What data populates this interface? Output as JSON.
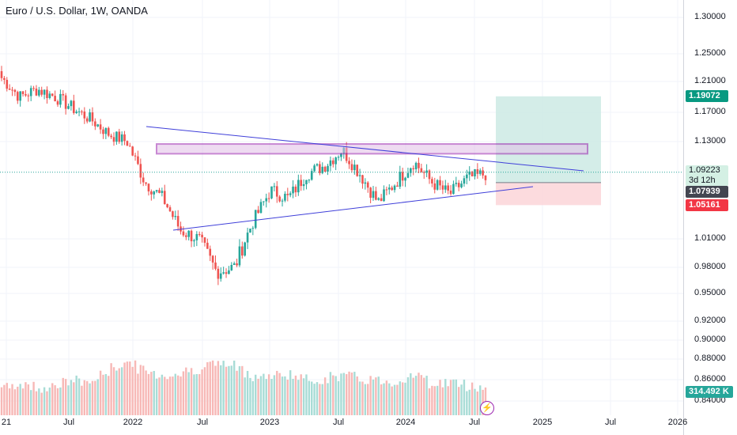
{
  "title": "Euro / U.S. Dollar, 1W, OANDA",
  "price_axis": {
    "ticks": [
      "1.30000",
      "1.25000",
      "1.21000",
      "1.17000",
      "1.13000",
      "1.01000",
      "0.98000",
      "0.95000",
      "0.92000",
      "0.90000",
      "0.88000",
      "0.86000",
      "0.84000"
    ],
    "tick_values": [
      1.3,
      1.25,
      1.21,
      1.17,
      1.13,
      1.01,
      0.98,
      0.95,
      0.92,
      0.9,
      0.88,
      0.86,
      0.84
    ],
    "badges": {
      "take_profit": "1.19072",
      "current": "1.09223",
      "countdown": "3d 12h",
      "entry": "1.07939",
      "stop_loss": "1.05161",
      "volume": "314.492 K"
    }
  },
  "time_axis": {
    "ticks": [
      "21",
      "Jul",
      "2022",
      "Jul",
      "2023",
      "Jul",
      "2024",
      "Jul",
      "2025",
      "Jul",
      "2026"
    ]
  },
  "colors": {
    "up": "#26a69a",
    "down": "#ef5350",
    "trendline": "#3f3fd9",
    "zone": "#9c27b0",
    "profit_fill": "#cdeae4",
    "loss_fill": "#fbd5d8",
    "current_line": "#26a69a"
  },
  "chart_data": {
    "type": "line",
    "title": "Euro / U.S. Dollar, 1W, OANDA",
    "xlabel": "",
    "ylabel": "",
    "x": [
      "2021-01",
      "2021-03",
      "2021-05",
      "2021-07",
      "2021-09",
      "2021-11",
      "2022-01",
      "2022-02",
      "2022-04",
      "2022-05",
      "2022-07",
      "2022-08",
      "2022-09",
      "2022-10",
      "2022-11",
      "2023-01",
      "2023-02",
      "2023-04",
      "2023-05",
      "2023-07",
      "2023-08",
      "2023-10",
      "2023-11",
      "2024-01",
      "2024-02",
      "2024-04",
      "2024-05",
      "2024-07"
    ],
    "series": [
      {
        "values": [
          1.215,
          1.19,
          1.2,
          1.19,
          1.175,
          1.16,
          1.14,
          1.13,
          1.08,
          1.06,
          1.02,
          1.01,
          0.975,
          0.98,
          1.03,
          1.07,
          1.06,
          1.09,
          1.1,
          1.12,
          1.09,
          1.055,
          1.08,
          1.105,
          1.08,
          1.065,
          1.085,
          1.09
        ]
      }
    ],
    "volume": [
      150,
      180,
      160,
      170,
      200,
      190,
      260,
      310,
      250,
      230,
      240,
      270,
      300,
      280,
      230,
      220,
      240,
      200,
      210,
      230,
      210,
      200,
      190,
      240,
      180,
      190,
      170,
      160
    ],
    "current_price": 1.09223,
    "drawings": {
      "resistance_zone": [
        1.115,
        1.127
      ],
      "position": {
        "entry": 1.07939,
        "take_profit": 1.19072,
        "stop_loss": 1.05161
      }
    },
    "ylim": [
      0.83,
      1.32
    ]
  }
}
